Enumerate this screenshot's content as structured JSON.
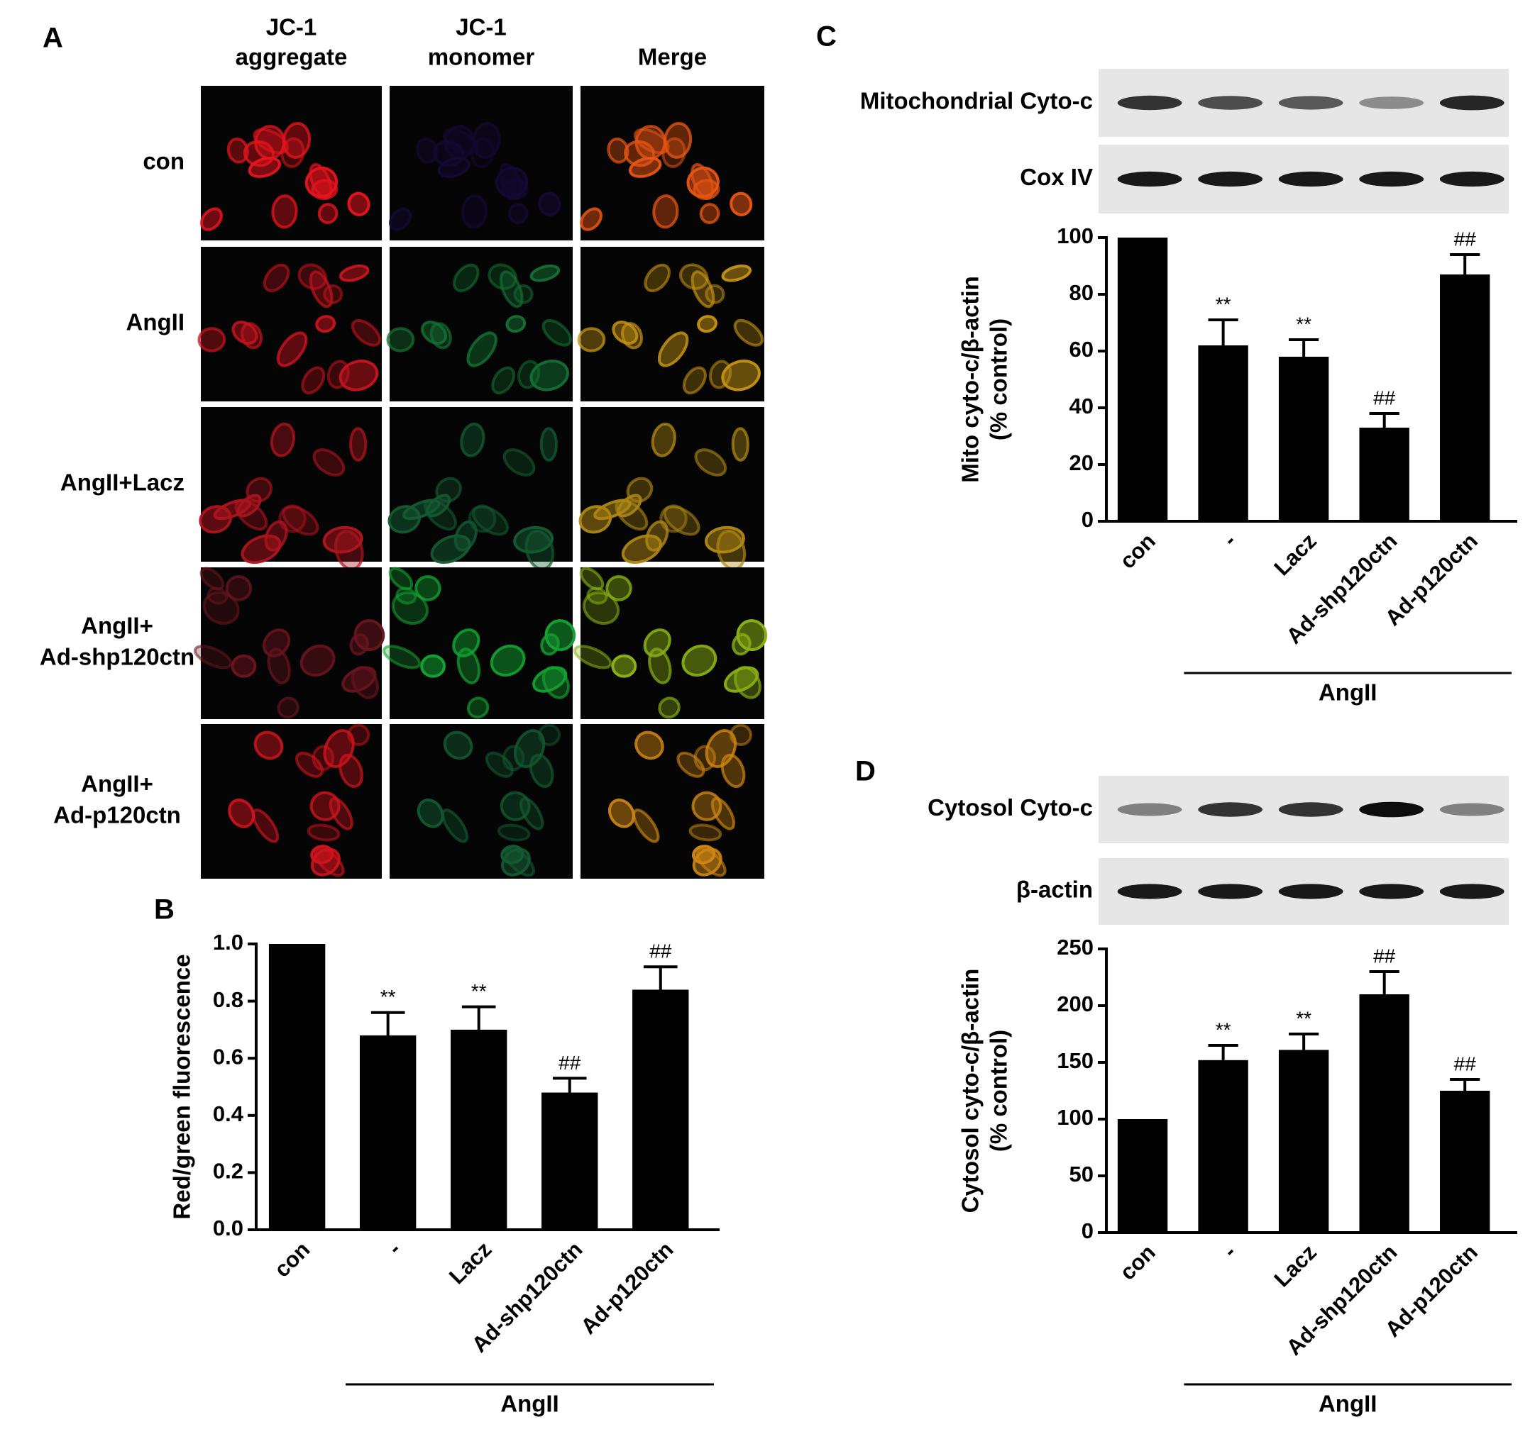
{
  "panel_a": {
    "panel": "A",
    "columns": [
      [
        "JC-1",
        "aggregate"
      ],
      [
        "JC-1",
        "monomer"
      ],
      [
        "Merge"
      ]
    ],
    "rows": [
      [
        "con"
      ],
      [
        "AngII"
      ],
      [
        "AngII+Lacz"
      ],
      [
        "AngII+",
        "Ad-shp120ctn"
      ],
      [
        "AngII+",
        "Ad-p120ctn"
      ]
    ]
  },
  "chart_data": [
    {
      "type": "bar",
      "panel": "B",
      "ylabel": [
        "Red/green fluorescence"
      ],
      "categories": [
        "con",
        "-",
        "Lacz",
        "Ad-shp120ctn",
        "Ad-p120ctn"
      ],
      "values": [
        1.0,
        0.68,
        0.7,
        0.48,
        0.84
      ],
      "errors": [
        null,
        0.08,
        0.08,
        0.05,
        0.08
      ],
      "annotations": [
        null,
        "**",
        "**",
        "##",
        "##"
      ],
      "group_label": "AngII",
      "color": "#000000",
      "ylim": [
        0,
        1
      ],
      "yticks": [
        {
          "value": 0,
          "label": "0.0"
        },
        0.2,
        0.4,
        0.6,
        0.8,
        {
          "value": 1,
          "label": "1.0"
        }
      ]
    },
    {
      "type": "bar",
      "panel": "C",
      "blots": [
        "Mitochondrial Cyto-c",
        "Cox IV"
      ],
      "ylabel": [
        "Mito cyto-c/β-actin",
        "(% control)"
      ],
      "categories": [
        "con",
        "-",
        "Lacz",
        "Ad-shp120ctn",
        "Ad-p120ctn"
      ],
      "values": [
        100,
        62,
        58,
        33,
        87
      ],
      "errors": [
        null,
        9,
        6,
        5,
        7
      ],
      "annotations": [
        null,
        "**",
        "**",
        "##",
        "##"
      ],
      "group_label": "AngII",
      "color": "#000000",
      "ylim": [
        0,
        100
      ],
      "yticks": [
        0,
        20,
        40,
        60,
        80,
        100
      ]
    },
    {
      "type": "bar",
      "panel": "D",
      "blots": [
        "Cytosol Cyto-c",
        "β-actin"
      ],
      "ylabel": [
        "Cytosol cyto-c/β-actin",
        "(% control)"
      ],
      "categories": [
        "con",
        "-",
        "Lacz",
        "Ad-shp120ctn",
        "Ad-p120ctn"
      ],
      "values": [
        100,
        152,
        161,
        210,
        125
      ],
      "errors": [
        null,
        13,
        14,
        20,
        10
      ],
      "annotations": [
        null,
        "**",
        "**",
        "##",
        "##"
      ],
      "group_label": "AngII",
      "color": "#000000",
      "ylim": [
        0,
        250
      ],
      "yticks": [
        0,
        50,
        100,
        150,
        200,
        250
      ]
    }
  ]
}
